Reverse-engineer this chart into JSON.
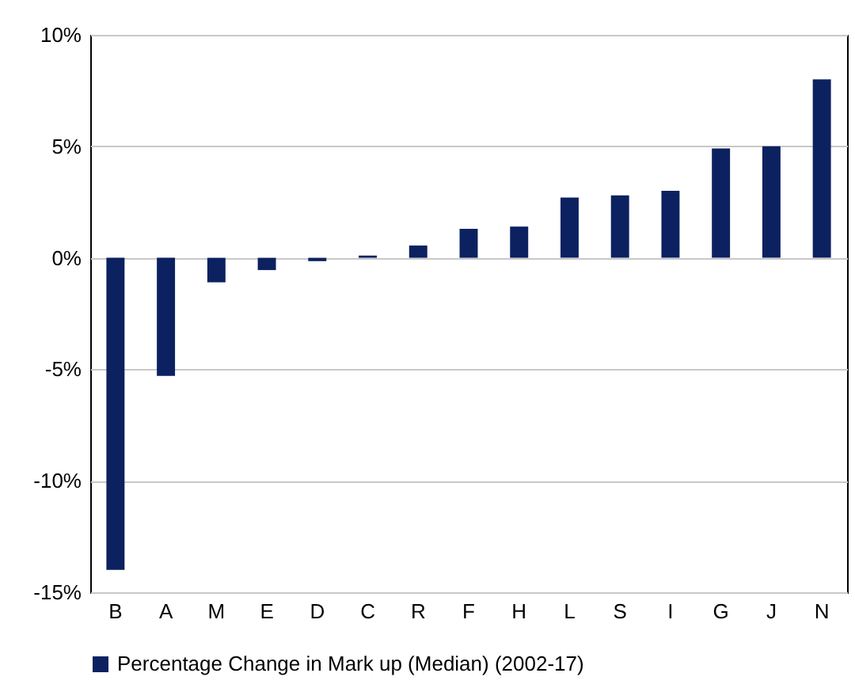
{
  "chart_data": {
    "type": "bar",
    "categories": [
      "B",
      "A",
      "M",
      "E",
      "D",
      "C",
      "R",
      "F",
      "H",
      "L",
      "S",
      "I",
      "G",
      "J",
      "N"
    ],
    "series": [
      {
        "name": "Percentage Change in Mark up (Median) (2002-17)",
        "color": "#0c2160",
        "values": [
          -14.0,
          -5.3,
          -1.1,
          -0.55,
          -0.15,
          0.1,
          0.55,
          1.3,
          1.4,
          2.7,
          2.8,
          3.0,
          4.9,
          5.0,
          8.0
        ]
      }
    ],
    "ylim": [
      -15,
      10
    ],
    "yticks": [
      {
        "value": -15,
        "label": "-15%"
      },
      {
        "value": -10,
        "label": "-10%"
      },
      {
        "value": -5,
        "label": "-5%"
      },
      {
        "value": 0,
        "label": "0%"
      },
      {
        "value": 5,
        "label": "5%"
      },
      {
        "value": 10,
        "label": "10%"
      }
    ],
    "grid": "y",
    "legend": "bottom"
  }
}
